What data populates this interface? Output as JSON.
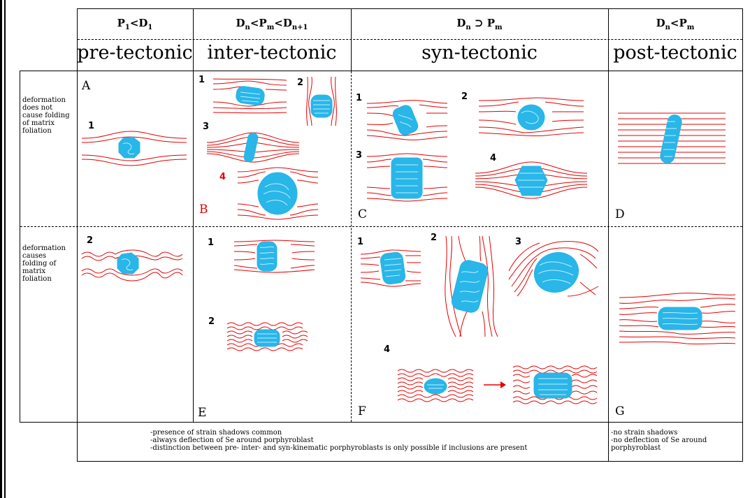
{
  "columns": [
    {
      "condition_main": "P",
      "condition_sub1": "1",
      "condition_mid": "<D",
      "condition_sub2": "1",
      "condition_tail": "",
      "condition_sub3": "",
      "name": "pre-tectonic"
    },
    {
      "condition_main": "D",
      "condition_sub1": "n",
      "condition_mid": "<P",
      "condition_sub2": "m",
      "condition_tail": "<D",
      "condition_sub3": "n+1",
      "name": "inter-tectonic"
    },
    {
      "condition_main": "D",
      "condition_sub1": "n",
      "condition_mid": " ⊃ P",
      "condition_sub2": "m",
      "condition_tail": "",
      "condition_sub3": "",
      "name": "syn-tectonic"
    },
    {
      "condition_main": "D",
      "condition_sub1": "n",
      "condition_mid": "<P",
      "condition_sub2": "m",
      "condition_tail": "",
      "condition_sub3": "",
      "name": "post-tectonic"
    }
  ],
  "rows": [
    {
      "label": [
        "deformation",
        "does not",
        "cause folding",
        "of matrix",
        "foliation"
      ]
    },
    {
      "label": [
        "deformation",
        "causes",
        "folding of",
        "matrix",
        "foliation"
      ]
    }
  ],
  "panel_letters": {
    "A": "A",
    "B": "B",
    "C": "C",
    "D": "D",
    "E": "E",
    "F": "F",
    "G": "G"
  },
  "sketch_numbers": {
    "a1": "1",
    "a2": "2",
    "b1": "1",
    "b2": "2",
    "b3": "3",
    "b4": "4",
    "c1": "1",
    "c2": "2",
    "c3": "3",
    "c4": "4",
    "e1": "1",
    "e2": "2",
    "f1": "1",
    "f2": "2",
    "f3": "3",
    "f4": "4"
  },
  "notes_left": [
    "-presence of strain shadows common",
    "-always deflection of Se around porphyroblast",
    "-distinction between pre- inter- and syn-kinematic porphyroblasts is only possible if inclusions are present"
  ],
  "notes_right": [
    "-no strain shadows",
    "-no deflection of Se around",
    "porphyroblast"
  ],
  "colors": {
    "foliation": "#e60000",
    "porphyroblast": "#29b6e8",
    "highlight": "#e60000"
  }
}
